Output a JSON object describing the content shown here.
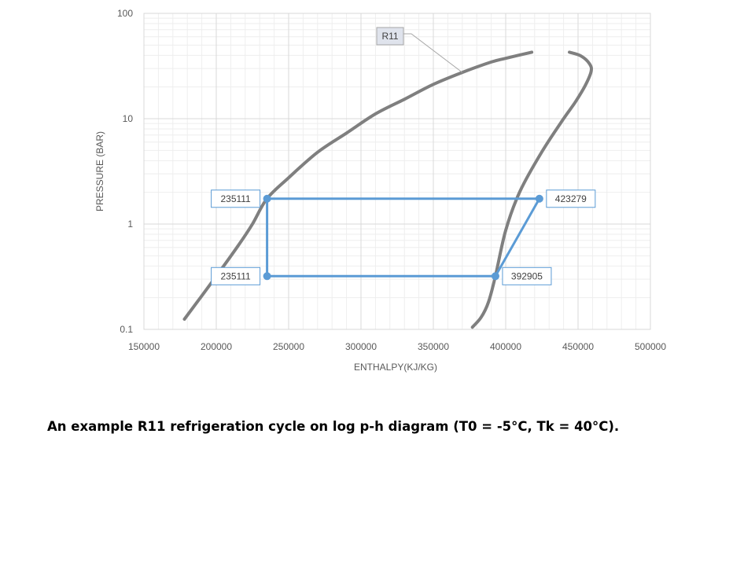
{
  "caption": "An example R11 refrigeration cycle on log p-h diagram (T0 = -5°C, Tk = 40°C).",
  "chart_data": {
    "type": "line",
    "title": "",
    "xlabel": "ENTHALPY(KJ/KG)",
    "ylabel": "PRESSURE (BAR)",
    "xlim": [
      150000,
      500000
    ],
    "ylim": [
      0.1,
      100
    ],
    "yscale": "log",
    "x_ticks": [
      "150000",
      "200000",
      "250000",
      "300000",
      "350000",
      "400000",
      "450000",
      "500000"
    ],
    "y_ticks": [
      "0.1",
      "1",
      "10",
      "100"
    ],
    "grid": true,
    "colors": {
      "saturation": "#7f7f7f",
      "cycle": "#5b9bd5",
      "grid": "#d9d9d9"
    },
    "series": [
      {
        "name": "R11",
        "role": "saturation-liquid",
        "points": [
          [
            178000,
            0.125
          ],
          [
            200000,
            0.32
          ],
          [
            215000,
            0.62
          ],
          [
            225000,
            1.0
          ],
          [
            235000,
            1.74
          ],
          [
            250000,
            2.75
          ],
          [
            270000,
            4.8
          ],
          [
            290000,
            7.3
          ],
          [
            310000,
            11.1
          ],
          [
            330000,
            15.3
          ],
          [
            350000,
            21.2
          ],
          [
            370000,
            27.5
          ],
          [
            390000,
            34.5
          ],
          [
            400000,
            37.4
          ],
          [
            418000,
            42.8
          ]
        ]
      },
      {
        "role": "saturation-vapor",
        "points": [
          [
            444000,
            42.8
          ],
          [
            452000,
            39.4
          ],
          [
            458000,
            33.1
          ],
          [
            459000,
            28.0
          ],
          [
            455000,
            20.7
          ],
          [
            448000,
            14.3
          ],
          [
            440000,
            10.0
          ],
          [
            425000,
            4.85
          ],
          [
            410000,
            2.06
          ],
          [
            400000,
            0.87
          ],
          [
            392905,
            0.32
          ],
          [
            388000,
            0.18
          ],
          [
            383000,
            0.13
          ],
          [
            377000,
            0.105
          ]
        ]
      },
      {
        "role": "cycle",
        "points": [
          {
            "h": 235111,
            "p": 1.74,
            "label": "235111"
          },
          {
            "h": 423279,
            "p": 1.74,
            "label": "423279"
          },
          {
            "h": 392905,
            "p": 0.32,
            "label": "392905"
          },
          {
            "h": 235111,
            "p": 0.32,
            "label": "235111"
          }
        ]
      }
    ]
  }
}
